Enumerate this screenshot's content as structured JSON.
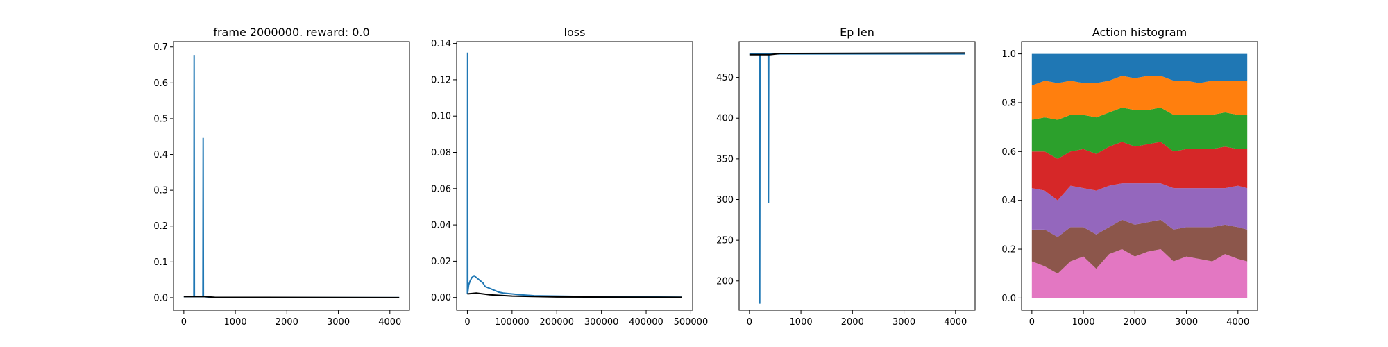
{
  "chart_data": [
    {
      "type": "line",
      "title": "frame 2000000. reward: 0.0",
      "xlabel": "",
      "ylabel": "",
      "xlim": [
        -200,
        4380
      ],
      "ylim": [
        -0.035,
        0.715
      ],
      "xticks": [
        0,
        1000,
        2000,
        3000,
        4000
      ],
      "xtick_labels": [
        "0",
        "1000",
        "2000",
        "3000",
        "4000"
      ],
      "yticks": [
        0.0,
        0.1,
        0.2,
        0.3,
        0.4,
        0.5,
        0.6,
        0.7
      ],
      "ytick_labels": [
        "0.0",
        "0.1",
        "0.2",
        "0.3",
        "0.4",
        "0.5",
        "0.6",
        "0.7"
      ],
      "grid": false,
      "series": [
        {
          "color": "#1f77b4",
          "x": [
            0,
            195,
            200,
            205,
            370,
            375,
            380,
            600,
            4180
          ],
          "y": [
            0.003,
            0.003,
            0.678,
            0.003,
            0.003,
            0.446,
            0.003,
            0.0,
            0.0
          ]
        },
        {
          "color": "#000000",
          "x": [
            0,
            400,
            600,
            4180
          ],
          "y": [
            0.003,
            0.003,
            0.001,
            0.0
          ]
        }
      ]
    },
    {
      "type": "line",
      "title": "loss",
      "xlabel": "",
      "ylabel": "",
      "xlim": [
        -24000,
        504000
      ],
      "ylim": [
        -0.007,
        0.141
      ],
      "xticks": [
        0,
        100000,
        200000,
        300000,
        400000,
        500000
      ],
      "xtick_labels": [
        "0",
        "100000",
        "200000",
        "300000",
        "400000",
        "500000"
      ],
      "yticks": [
        0.0,
        0.02,
        0.04,
        0.06,
        0.08,
        0.1,
        0.12,
        0.14
      ],
      "ytick_labels": [
        "0.00",
        "0.02",
        "0.04",
        "0.06",
        "0.08",
        "0.10",
        "0.12",
        "0.14"
      ],
      "grid": false,
      "series": [
        {
          "color": "#1f77b4",
          "x": [
            0,
            500,
            1000,
            1500,
            3000,
            6000,
            10000,
            15000,
            20000,
            25000,
            30000,
            35000,
            40000,
            50000,
            60000,
            70000,
            80000,
            100000,
            120000,
            150000,
            200000,
            250000,
            300000,
            350000,
            400000,
            480000
          ],
          "y": [
            0.002,
            0.135,
            0.003,
            0.004,
            0.007,
            0.009,
            0.011,
            0.012,
            0.011,
            0.01,
            0.009,
            0.008,
            0.006,
            0.005,
            0.004,
            0.003,
            0.0025,
            0.002,
            0.0015,
            0.001,
            0.0008,
            0.0006,
            0.0005,
            0.0004,
            0.0003,
            0.0002
          ]
        },
        {
          "color": "#000000",
          "x": [
            0,
            20000,
            50000,
            100000,
            200000,
            480000
          ],
          "y": [
            0.002,
            0.0025,
            0.0015,
            0.0008,
            0.0003,
            0.0001
          ]
        }
      ]
    },
    {
      "type": "line",
      "title": "Ep len",
      "xlabel": "",
      "ylabel": "",
      "xlim": [
        -200,
        4380
      ],
      "ylim": [
        164,
        494
      ],
      "xticks": [
        0,
        1000,
        2000,
        3000,
        4000
      ],
      "xtick_labels": [
        "0",
        "1000",
        "2000",
        "3000",
        "4000"
      ],
      "yticks": [
        200,
        250,
        300,
        350,
        400,
        450
      ],
      "ytick_labels": [
        "200",
        "250",
        "300",
        "350",
        "400",
        "450"
      ],
      "grid": false,
      "series": [
        {
          "color": "#1f77b4",
          "x": [
            0,
            195,
            200,
            205,
            365,
            370,
            375,
            4180
          ],
          "y": [
            479,
            479,
            172,
            479,
            479,
            296,
            479,
            479
          ]
        },
        {
          "color": "#000000",
          "x": [
            0,
            400,
            600,
            4180
          ],
          "y": [
            478,
            478,
            479.5,
            480
          ]
        }
      ]
    },
    {
      "type": "area",
      "title": "Action histogram",
      "xlabel": "",
      "ylabel": "",
      "xlim": [
        -200,
        4380
      ],
      "ylim": [
        -0.05,
        1.05
      ],
      "xticks": [
        0,
        1000,
        2000,
        3000,
        4000
      ],
      "xtick_labels": [
        "0",
        "1000",
        "2000",
        "3000",
        "4000"
      ],
      "yticks": [
        0.0,
        0.2,
        0.4,
        0.6,
        0.8,
        1.0
      ],
      "ytick_labels": [
        "0.0",
        "0.2",
        "0.4",
        "0.6",
        "0.8",
        "1.0"
      ],
      "grid": false,
      "stacked": true,
      "x": [
        0,
        250,
        500,
        750,
        1000,
        1250,
        1500,
        1750,
        2000,
        2250,
        2500,
        2750,
        3000,
        3250,
        3500,
        3750,
        4000,
        4180
      ],
      "series": [
        {
          "color": "#e377c2",
          "values": [
            0.15,
            0.13,
            0.1,
            0.15,
            0.17,
            0.12,
            0.18,
            0.2,
            0.17,
            0.19,
            0.2,
            0.15,
            0.17,
            0.16,
            0.15,
            0.18,
            0.16,
            0.15
          ]
        },
        {
          "color": "#8c564b",
          "values": [
            0.13,
            0.15,
            0.15,
            0.14,
            0.12,
            0.14,
            0.11,
            0.12,
            0.13,
            0.12,
            0.12,
            0.13,
            0.12,
            0.13,
            0.14,
            0.12,
            0.13,
            0.13
          ]
        },
        {
          "color": "#9467bd",
          "values": [
            0.17,
            0.16,
            0.15,
            0.17,
            0.16,
            0.18,
            0.17,
            0.15,
            0.17,
            0.16,
            0.15,
            0.17,
            0.16,
            0.16,
            0.16,
            0.15,
            0.17,
            0.17
          ]
        },
        {
          "color": "#d62728",
          "values": [
            0.15,
            0.16,
            0.17,
            0.14,
            0.16,
            0.15,
            0.16,
            0.17,
            0.15,
            0.16,
            0.17,
            0.15,
            0.16,
            0.16,
            0.16,
            0.17,
            0.15,
            0.16
          ]
        },
        {
          "color": "#2ca02c",
          "values": [
            0.13,
            0.14,
            0.16,
            0.15,
            0.14,
            0.15,
            0.14,
            0.14,
            0.15,
            0.14,
            0.14,
            0.15,
            0.14,
            0.14,
            0.14,
            0.14,
            0.14,
            0.14
          ]
        },
        {
          "color": "#ff7f0e",
          "values": [
            0.14,
            0.15,
            0.15,
            0.14,
            0.13,
            0.14,
            0.13,
            0.13,
            0.13,
            0.14,
            0.13,
            0.14,
            0.14,
            0.13,
            0.14,
            0.13,
            0.14,
            0.14
          ]
        },
        {
          "color": "#1f77b4",
          "values": [
            0.13,
            0.11,
            0.12,
            0.11,
            0.12,
            0.12,
            0.11,
            0.09,
            0.1,
            0.09,
            0.09,
            0.11,
            0.11,
            0.12,
            0.11,
            0.11,
            0.11,
            0.11
          ]
        }
      ]
    }
  ]
}
